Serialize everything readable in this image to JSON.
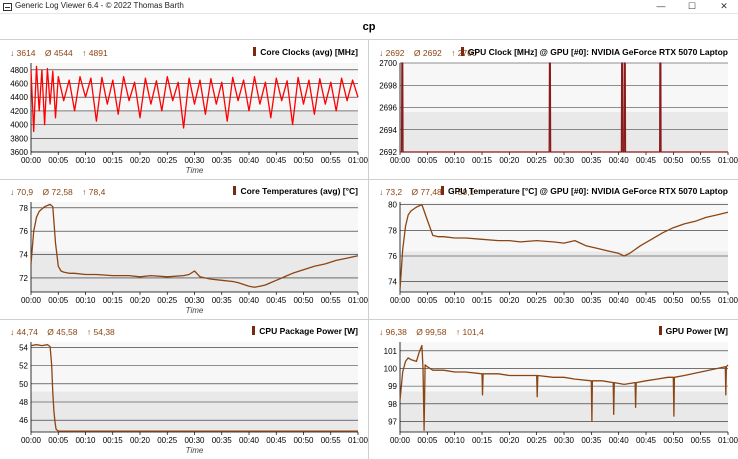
{
  "window": {
    "title": "Generic Log Viewer 6.4 - © 2022 Thomas Barth",
    "minimize": "—",
    "maximize": "☐",
    "close": "✕"
  },
  "document_title": "cp",
  "colors": {
    "series_red": "#ff0000",
    "series_dark": "#8b4513",
    "grid": "#000000",
    "band_light": "#f7f7f7",
    "band_dark": "#dedede"
  },
  "chart_data": [
    {
      "id": "core-clocks",
      "type": "line",
      "title": "Core Clocks (avg) [MHz]",
      "stats": {
        "min": "↓ 3614",
        "avg": "Ø 4544",
        "max": "↑ 4891"
      },
      "xlabel": "Time",
      "x_ticks": [
        "00:00",
        "00:05",
        "00:10",
        "00:15",
        "00:20",
        "00:25",
        "00:30",
        "00:35",
        "00:40",
        "00:45",
        "00:50",
        "00:55",
        "01:00"
      ],
      "xlim_minutes": [
        0,
        60
      ],
      "ylim": [
        3600,
        4900
      ],
      "y_ticks": [
        3600,
        3800,
        4000,
        4200,
        4400,
        4600,
        4800
      ],
      "series_color": "#ff0000",
      "series": [
        {
          "x": [
            0,
            0.5,
            1,
            1.5,
            2,
            2.5,
            3,
            3.5,
            4,
            4.5,
            5,
            6,
            7,
            8,
            9,
            10,
            11,
            12,
            13,
            14,
            15,
            16,
            17,
            18,
            19,
            20,
            21,
            22,
            23,
            24,
            25,
            26,
            27,
            28,
            29,
            30,
            31,
            32,
            33,
            34,
            35,
            36,
            37,
            38,
            39,
            40,
            41,
            42,
            43,
            44,
            45,
            46,
            47,
            48,
            49,
            50,
            51,
            52,
            53,
            54,
            55,
            56,
            57,
            58,
            59,
            60
          ],
          "y": [
            4800,
            3900,
            4850,
            4200,
            4800,
            4000,
            4820,
            4300,
            4780,
            4100,
            4700,
            4350,
            4650,
            4200,
            4700,
            4400,
            4680,
            4050,
            4690,
            4300,
            4650,
            4150,
            4700,
            4350,
            4620,
            4100,
            4680,
            4300,
            4640,
            4200,
            4700,
            4350,
            4620,
            3950,
            4680,
            4300,
            4650,
            4150,
            4670,
            4300,
            4620,
            4050,
            4690,
            4350,
            4650,
            4200,
            4700,
            4300,
            4620,
            4100,
            4680,
            4350,
            4640,
            4000,
            4690,
            4300,
            4650,
            4150,
            4670,
            4300,
            4620,
            4200,
            4680,
            4350,
            4650,
            4400
          ]
        }
      ]
    },
    {
      "id": "gpu-clock",
      "type": "line",
      "title": "GPU Clock [MHz] @ GPU [#0]: NVIDIA GeForce RTX 5070 Laptop",
      "stats": {
        "min": "↓ 2692",
        "avg": "Ø 2692",
        "max": "↑ 2700"
      },
      "xlabel": "",
      "x_ticks": [
        "00:00",
        "00:05",
        "00:10",
        "00:15",
        "00:20",
        "00:25",
        "00:30",
        "00:35",
        "00:40",
        "00:45",
        "00:50",
        "00:55",
        "01:00"
      ],
      "xlim_minutes": [
        0,
        60
      ],
      "ylim": [
        2692,
        2700
      ],
      "y_ticks": [
        2692,
        2694,
        2696,
        2698,
        2700
      ],
      "series_color": "#8b1a1a",
      "series": [
        {
          "x": [
            0,
            0.3,
            0.35,
            0.5,
            0.55,
            27.3,
            27.35,
            27.5,
            27.55,
            40.5,
            40.55,
            40.7,
            40.75,
            41.0,
            41.05,
            41.2,
            41.25,
            47.5,
            47.55,
            47.7,
            47.75,
            60
          ],
          "y": [
            2692,
            2692,
            2700,
            2700,
            2692,
            2692,
            2700,
            2700,
            2692,
            2692,
            2700,
            2700,
            2692,
            2692,
            2700,
            2700,
            2692,
            2692,
            2700,
            2700,
            2692,
            2692
          ]
        }
      ]
    },
    {
      "id": "core-temperatures",
      "type": "line",
      "title": "Core Temperatures (avg) [°C]",
      "stats": {
        "min": "↓ 70,9",
        "avg": "Ø 72,58",
        "max": "↑ 78,4"
      },
      "xlabel": "Time",
      "x_ticks": [
        "00:00",
        "00:05",
        "00:10",
        "00:15",
        "00:20",
        "00:25",
        "00:30",
        "00:35",
        "00:40",
        "00:45",
        "00:50",
        "00:55",
        "01:00"
      ],
      "xlim_minutes": [
        0,
        60
      ],
      "ylim": [
        70.8,
        78.5
      ],
      "y_ticks": [
        72,
        74,
        76,
        78
      ],
      "series_color": "#8b4513",
      "series": [
        {
          "x": [
            0,
            0.5,
            1,
            1.5,
            2,
            2.5,
            3,
            3.5,
            4,
            4.5,
            5,
            5.5,
            6,
            7,
            8,
            10,
            12,
            15,
            18,
            20,
            22,
            25,
            28,
            29,
            30,
            31,
            32,
            33,
            35,
            37,
            38,
            40,
            41,
            42,
            43,
            44,
            45,
            46,
            47,
            48,
            50,
            52,
            54,
            56,
            58,
            60
          ],
          "y": [
            73.2,
            76.0,
            77.2,
            77.7,
            77.9,
            78.1,
            78.2,
            78.3,
            78.1,
            75.0,
            73.0,
            72.6,
            72.5,
            72.4,
            72.4,
            72.3,
            72.3,
            72.2,
            72.2,
            72.1,
            72.2,
            72.1,
            72.2,
            72.3,
            72.6,
            72.1,
            72.0,
            71.9,
            71.8,
            71.7,
            71.6,
            71.3,
            71.2,
            71.3,
            71.4,
            71.6,
            71.8,
            72.0,
            72.2,
            72.4,
            72.7,
            73.0,
            73.2,
            73.5,
            73.7,
            73.9
          ]
        }
      ]
    },
    {
      "id": "gpu-temperature",
      "type": "line",
      "title": "GPU Temperature [°C] @ GPU [#0]: NVIDIA GeForce RTX 5070 Laptop",
      "stats": {
        "min": "↓ 73,2",
        "avg": "Ø 77,48",
        "max": "↑ 80,1"
      },
      "xlabel": "",
      "x_ticks": [
        "00:00",
        "00:05",
        "00:10",
        "00:15",
        "00:20",
        "00:25",
        "00:30",
        "00:35",
        "00:40",
        "00:45",
        "00:50",
        "00:55",
        "01:00"
      ],
      "xlim_minutes": [
        0,
        60
      ],
      "ylim": [
        73.2,
        80.2
      ],
      "y_ticks": [
        74,
        76,
        78,
        80
      ],
      "series_color": "#8b4513",
      "series": [
        {
          "x": [
            0,
            0.5,
            1,
            1.5,
            2,
            3,
            4,
            5,
            6,
            7,
            8,
            10,
            12,
            15,
            18,
            20,
            22,
            25,
            28,
            30,
            32,
            34,
            36,
            38,
            40,
            41,
            42,
            44,
            46,
            48,
            50,
            52,
            54,
            56,
            58,
            60
          ],
          "y": [
            73.4,
            76.5,
            78.3,
            79.2,
            79.5,
            79.8,
            80.0,
            78.8,
            77.6,
            77.5,
            77.5,
            77.4,
            77.4,
            77.3,
            77.2,
            77.2,
            77.1,
            77.2,
            77.1,
            77.0,
            77.2,
            76.8,
            76.6,
            76.4,
            76.2,
            76.0,
            76.2,
            76.8,
            77.3,
            77.8,
            78.2,
            78.5,
            78.7,
            79.0,
            79.2,
            79.4
          ]
        }
      ]
    },
    {
      "id": "cpu-package-power",
      "type": "line",
      "title": "CPU Package Power [W]",
      "stats": {
        "min": "↓ 44,74",
        "avg": "Ø 45,58",
        "max": "↑ 54,38"
      },
      "xlabel": "Time",
      "x_ticks": [
        "00:00",
        "00:05",
        "00:10",
        "00:15",
        "00:20",
        "00:25",
        "00:30",
        "00:35",
        "00:40",
        "00:45",
        "00:50",
        "00:55",
        "01:00"
      ],
      "xlim_minutes": [
        0,
        60
      ],
      "ylim": [
        44.7,
        54.6
      ],
      "y_ticks": [
        46,
        48,
        50,
        52,
        54
      ],
      "series_color": "#8b4513",
      "series": [
        {
          "x": [
            0,
            1,
            2,
            3,
            3.5,
            3.8,
            4.0,
            4.2,
            4.4,
            4.6,
            5,
            6,
            10,
            15,
            20,
            25,
            30,
            35,
            40,
            45,
            50,
            55,
            60
          ],
          "y": [
            54.2,
            54.3,
            54.2,
            54.3,
            54.1,
            52.0,
            49.0,
            47.0,
            45.8,
            45.0,
            44.8,
            44.8,
            44.8,
            44.8,
            44.8,
            44.8,
            44.8,
            44.8,
            44.8,
            44.8,
            44.8,
            44.8,
            44.8
          ]
        }
      ]
    },
    {
      "id": "gpu-power",
      "type": "line",
      "title": "GPU Power [W]",
      "stats": {
        "min": "↓ 96,38",
        "avg": "Ø 99,58",
        "max": "↑ 101,4"
      },
      "xlabel": "",
      "x_ticks": [
        "00:00",
        "00:05",
        "00:10",
        "00:15",
        "00:20",
        "00:25",
        "00:30",
        "00:35",
        "00:40",
        "00:45",
        "00:50",
        "00:55",
        "01:00"
      ],
      "xlim_minutes": [
        0,
        60
      ],
      "ylim": [
        96.4,
        101.5
      ],
      "y_ticks": [
        97,
        98,
        99,
        100,
        101
      ],
      "series_color": "#8b4513",
      "series": [
        {
          "x": [
            0,
            0.5,
            1,
            1.5,
            2,
            3,
            3.5,
            4,
            4.2,
            4.4,
            4.6,
            5,
            6,
            8,
            10,
            12,
            15,
            15.1,
            15.2,
            18,
            20,
            22,
            25,
            25.1,
            25.2,
            28,
            30,
            32,
            35,
            35.1,
            35.2,
            37,
            39,
            39.1,
            39.2,
            41,
            43,
            43.1,
            43.2,
            45,
            47,
            49,
            50,
            50.1,
            50.2,
            52,
            55,
            58,
            59.5,
            59.6,
            59.7,
            60
          ],
          "y": [
            98.2,
            99.8,
            100.4,
            100.6,
            100.5,
            100.4,
            100.9,
            101.3,
            100.0,
            96.5,
            100.2,
            100.1,
            99.9,
            99.9,
            99.8,
            99.8,
            99.7,
            98.5,
            99.7,
            99.7,
            99.6,
            99.6,
            99.6,
            98.4,
            99.6,
            99.5,
            99.5,
            99.4,
            99.3,
            97.0,
            99.3,
            99.3,
            99.2,
            97.4,
            99.2,
            99.1,
            99.2,
            97.8,
            99.2,
            99.3,
            99.4,
            99.5,
            99.5,
            97.3,
            99.5,
            99.6,
            99.8,
            100.0,
            100.1,
            98.5,
            100.1,
            100.2
          ]
        }
      ]
    }
  ]
}
